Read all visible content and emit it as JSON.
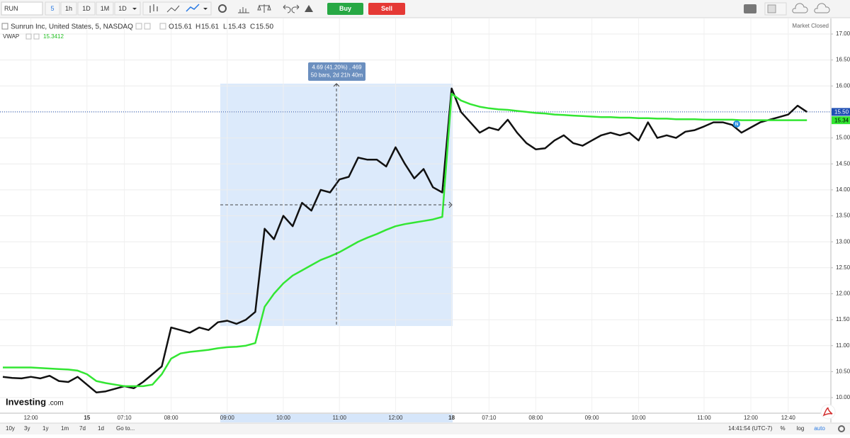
{
  "toolbar": {
    "symbol": "RUN",
    "intervals": [
      "5",
      "1h",
      "1D",
      "1M",
      "1D"
    ],
    "buy": "Buy",
    "sell": "Sell"
  },
  "legend": {
    "ohlc": [
      {
        "key": "O",
        "value": "15.61"
      },
      {
        "key": "H",
        "value": "15.61"
      },
      {
        "key": "L",
        "value": "15.43"
      },
      {
        "key": "C",
        "value": "15.50"
      }
    ],
    "indicator_value": "15.3412",
    "status": "Market Closed"
  },
  "measure": {
    "line1": "4.69 (41.20%) , 469",
    "line2": "50 bars, 2d 21h 40m"
  },
  "logo": {
    "brand": "Investing",
    "suffix": ".com"
  },
  "bottom": {
    "ranges": [
      "10y",
      "3y",
      "1y",
      "1m",
      "7d",
      "1d"
    ],
    "goto": "Go to...",
    "time": "14:41:54 (UTC-7)",
    "options": [
      "%",
      "log",
      "auto"
    ]
  },
  "chart_data": {
    "type": "line",
    "categories": [
      null,
      null,
      null,
      "12:00",
      null,
      null,
      null,
      null,
      null,
      "15",
      null,
      null,
      null,
      "07:10",
      null,
      null,
      null,
      null,
      "08:00",
      null,
      null,
      null,
      null,
      null,
      "09:00",
      null,
      null,
      null,
      null,
      null,
      "10:00",
      null,
      null,
      null,
      null,
      null,
      "11:00",
      null,
      null,
      null,
      null,
      null,
      "12:00",
      null,
      null,
      null,
      null,
      null,
      "18",
      null,
      null,
      null,
      "07:10",
      null,
      null,
      null,
      null,
      "08:00",
      null,
      null,
      null,
      null,
      null,
      "09:00",
      null,
      null,
      null,
      null,
      "10:00",
      null,
      null,
      null,
      null,
      null,
      null,
      "11:00",
      null,
      null,
      null,
      null,
      "12:00",
      null,
      null,
      null,
      "12:40",
      null,
      null
    ],
    "series": [
      {
        "name": "Sunrun Inc, United States, 5, NASDAQ",
        "color": "#111111",
        "values": [
          10.4,
          10.38,
          10.37,
          10.4,
          10.37,
          10.42,
          10.32,
          10.3,
          10.4,
          10.25,
          10.1,
          10.12,
          10.17,
          10.22,
          10.18,
          10.3,
          10.45,
          10.6,
          11.35,
          11.3,
          11.25,
          11.35,
          11.3,
          11.45,
          11.48,
          11.42,
          11.5,
          11.65,
          13.25,
          13.05,
          13.5,
          13.3,
          13.75,
          13.6,
          14.0,
          13.95,
          14.2,
          14.25,
          14.62,
          14.58,
          14.58,
          14.45,
          14.82,
          14.5,
          14.22,
          14.4,
          14.05,
          13.95,
          15.95,
          15.5,
          15.3,
          15.1,
          15.2,
          15.15,
          15.35,
          15.1,
          14.9,
          14.78,
          14.8,
          14.95,
          15.05,
          14.9,
          14.85,
          14.95,
          15.05,
          15.1,
          15.05,
          15.1,
          14.95,
          15.3,
          15.0,
          15.05,
          15.0,
          15.12,
          15.15,
          15.22,
          15.3,
          15.3,
          15.25,
          15.1,
          15.2,
          15.3,
          15.35,
          15.4,
          15.45,
          15.62,
          15.5
        ]
      },
      {
        "name": "VWAP",
        "color": "#33e633",
        "values": [
          10.58,
          10.58,
          10.58,
          10.58,
          10.57,
          10.56,
          10.55,
          10.54,
          10.52,
          10.45,
          10.32,
          10.28,
          10.25,
          10.22,
          10.22,
          10.22,
          10.25,
          10.45,
          10.75,
          10.85,
          10.88,
          10.9,
          10.92,
          10.95,
          10.97,
          10.98,
          11.0,
          11.05,
          11.75,
          12.0,
          12.2,
          12.35,
          12.45,
          12.55,
          12.65,
          12.72,
          12.8,
          12.9,
          13.0,
          13.08,
          13.15,
          13.23,
          13.3,
          13.34,
          13.37,
          13.4,
          13.43,
          13.48,
          15.85,
          15.72,
          15.65,
          15.6,
          15.57,
          15.55,
          15.54,
          15.52,
          15.5,
          15.48,
          15.47,
          15.45,
          15.44,
          15.43,
          15.42,
          15.41,
          15.4,
          15.4,
          15.39,
          15.39,
          15.38,
          15.38,
          15.37,
          15.37,
          15.36,
          15.36,
          15.36,
          15.35,
          15.35,
          15.35,
          15.35,
          15.34,
          15.34,
          15.34,
          15.34,
          15.34,
          15.34,
          15.34,
          15.34
        ]
      }
    ],
    "last_labels": [
      {
        "value": 15.5,
        "label": "15.50",
        "color": "#1f4fb4"
      },
      {
        "value": 15.34,
        "label": "15.34",
        "color": "#33e633"
      }
    ],
    "ylim": [
      9.7,
      17.3
    ],
    "yticks": [
      {
        "value": 10,
        "label": "10.00"
      },
      {
        "value": 10.5,
        "label": "10.50"
      },
      {
        "value": 11,
        "label": "11.00"
      },
      {
        "value": 11.5,
        "label": "11.50"
      },
      {
        "value": 12,
        "label": "12.00"
      },
      {
        "value": 12.5,
        "label": "12.50"
      },
      {
        "value": 13,
        "label": "13.00"
      },
      {
        "value": 13.5,
        "label": "13.50"
      },
      {
        "value": 14,
        "label": "14.00"
      },
      {
        "value": 14.5,
        "label": "14.50"
      },
      {
        "value": 15,
        "label": "15.00"
      },
      {
        "value": 15.5,
        "label": "15.50"
      },
      {
        "value": 16,
        "label": "16.00"
      },
      {
        "value": 16.5,
        "label": "16.50"
      },
      {
        "value": 17,
        "label": "17.00"
      }
    ],
    "grid": true
  }
}
